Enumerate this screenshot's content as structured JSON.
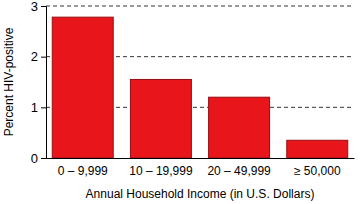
{
  "chart_data": {
    "type": "bar",
    "x_label": "Annual Household Income (in U.S. Dollars)",
    "y_label": "Percent HIV-positive",
    "categories": [
      "0 – 9,999",
      "10 – 19,999",
      "20 – 49,999",
      "≥ 50,000"
    ],
    "values": [
      2.78,
      1.55,
      1.2,
      0.35
    ],
    "color": "#e8161b",
    "ylim": [
      0,
      3
    ],
    "yticks": [
      0,
      1,
      2,
      3
    ],
    "grid": true
  }
}
